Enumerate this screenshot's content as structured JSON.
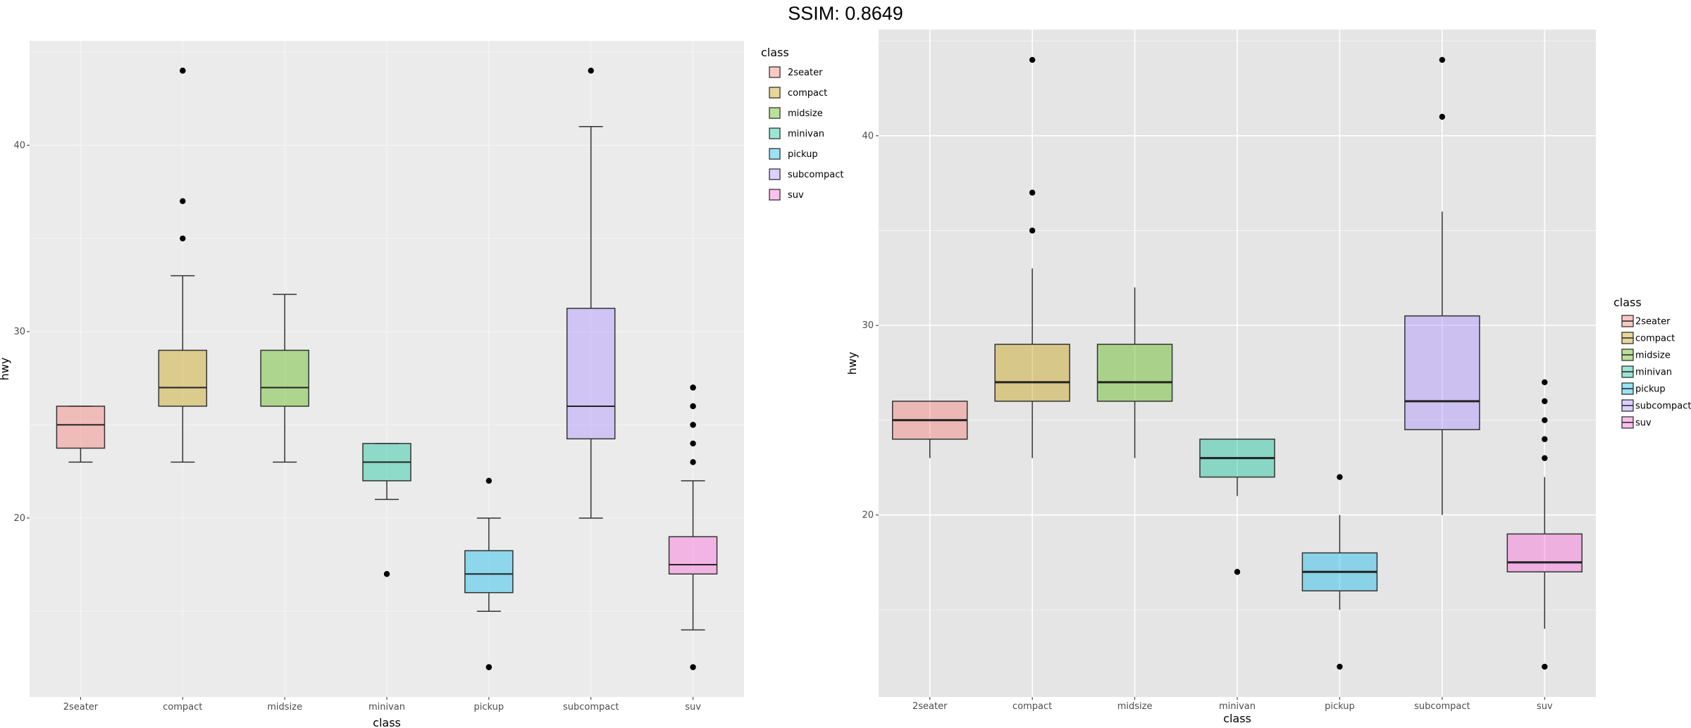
{
  "title": "SSIM: 0.8649",
  "colors": {
    "2seater": "#F8766D",
    "compact": "#C49A00",
    "midsize": "#53B400",
    "minivan": "#00C094",
    "pickup": "#00B6EB",
    "subcompact": "#A58AFF",
    "suv": "#FB61D7",
    "panel": "#EBEBEB",
    "panel_right": "#E5E5E5"
  },
  "chart_data": [
    {
      "type": "boxplot",
      "xlabel": "class",
      "ylabel": "hwy",
      "ylim": [
        10.4,
        45.6
      ],
      "yticks": [
        20,
        30,
        40
      ],
      "categories": [
        "2seater",
        "compact",
        "midsize",
        "minivan",
        "pickup",
        "subcompact",
        "suv"
      ],
      "legend": {
        "title": "class",
        "position": "top-right",
        "items": [
          "2seater",
          "compact",
          "midsize",
          "minivan",
          "pickup",
          "subcompact",
          "suv"
        ]
      },
      "boxes": [
        {
          "category": "2seater",
          "whisker_low": 23,
          "q1": 23.75,
          "median": 25,
          "q3": 26,
          "whisker_high": 26,
          "outliers": []
        },
        {
          "category": "compact",
          "whisker_low": 23,
          "q1": 26,
          "median": 27,
          "q3": 29,
          "whisker_high": 33,
          "outliers": [
            35,
            37,
            44,
            44
          ]
        },
        {
          "category": "midsize",
          "whisker_low": 23,
          "q1": 26,
          "median": 27,
          "q3": 29,
          "whisker_high": 32,
          "outliers": []
        },
        {
          "category": "minivan",
          "whisker_low": 21,
          "q1": 22,
          "median": 23,
          "q3": 24,
          "whisker_high": 24,
          "outliers": [
            17
          ]
        },
        {
          "category": "pickup",
          "whisker_low": 15,
          "q1": 16,
          "median": 17,
          "q3": 18.25,
          "whisker_high": 20,
          "outliers": [
            12,
            12,
            22
          ]
        },
        {
          "category": "subcompact",
          "whisker_low": 20,
          "q1": 24.25,
          "median": 26,
          "q3": 31.25,
          "whisker_high": 41,
          "outliers": [
            44
          ]
        },
        {
          "category": "suv",
          "whisker_low": 14,
          "q1": 17,
          "median": 17.5,
          "q3": 19,
          "whisker_high": 22,
          "outliers": [
            12,
            23,
            24,
            25,
            25,
            26,
            26,
            27,
            27
          ]
        }
      ]
    },
    {
      "type": "boxplot",
      "xlabel": "class",
      "ylabel": "hwy",
      "ylim": [
        10.4,
        45.6
      ],
      "yticks": [
        20,
        30,
        40
      ],
      "categories": [
        "2seater",
        "compact",
        "midsize",
        "minivan",
        "pickup",
        "subcompact",
        "suv"
      ],
      "legend": {
        "title": "class",
        "position": "right",
        "items": [
          "2seater",
          "compact",
          "midsize",
          "minivan",
          "pickup",
          "subcompact",
          "suv"
        ]
      },
      "boxes": [
        {
          "category": "2seater",
          "whisker_low": 23,
          "q1": 24,
          "median": 25,
          "q3": 26,
          "whisker_high": 26,
          "outliers": []
        },
        {
          "category": "compact",
          "whisker_low": 23,
          "q1": 26,
          "median": 27,
          "q3": 29,
          "whisker_high": 33,
          "outliers": [
            35,
            37,
            44
          ]
        },
        {
          "category": "midsize",
          "whisker_low": 23,
          "q1": 26,
          "median": 27,
          "q3": 29,
          "whisker_high": 32,
          "outliers": []
        },
        {
          "category": "minivan",
          "whisker_low": 21,
          "q1": 22,
          "median": 23,
          "q3": 24,
          "whisker_high": 24,
          "outliers": [
            17
          ]
        },
        {
          "category": "pickup",
          "whisker_low": 15,
          "q1": 16,
          "median": 17,
          "q3": 18,
          "whisker_high": 20,
          "outliers": [
            12,
            22
          ]
        },
        {
          "category": "subcompact",
          "whisker_low": 20,
          "q1": 24.5,
          "median": 26,
          "q3": 30.5,
          "whisker_high": 36,
          "outliers": [
            41,
            44
          ]
        },
        {
          "category": "suv",
          "whisker_low": 14,
          "q1": 17,
          "median": 17.5,
          "q3": 19,
          "whisker_high": 22,
          "outliers": [
            12,
            23,
            24,
            25,
            26,
            27
          ]
        }
      ]
    }
  ]
}
